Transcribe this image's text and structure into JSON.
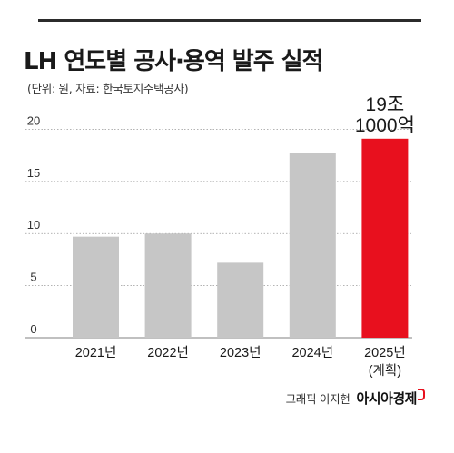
{
  "header": {
    "title": "LH 연도별 공사·용역 발주 실적",
    "subtitle": "(단위: 원, 자료: 한국토지주택공사)"
  },
  "footer": {
    "credit": "그래픽 이지현",
    "logo": "아시아경제"
  },
  "colors": {
    "bar": "#c6c6c6",
    "highlight": "#e8101e",
    "grid": "#9a9a9a"
  },
  "chart_data": {
    "type": "bar",
    "title": "LH 연도별 공사·용역 발주 실적",
    "categories": [
      "2021년",
      "2022년",
      "2023년",
      "2024년",
      "2025년"
    ],
    "category_sublabels": [
      "",
      "",
      "",
      "",
      "(계획)"
    ],
    "values": [
      9.7,
      10.0,
      7.2,
      17.7,
      19.1
    ],
    "highlight_index": 4,
    "yticks": [
      0,
      5,
      10,
      15,
      20
    ],
    "ylim": [
      0,
      21
    ],
    "grid": true,
    "annotation": {
      "index": 4,
      "lines": [
        "19조",
        "1000억"
      ]
    }
  }
}
